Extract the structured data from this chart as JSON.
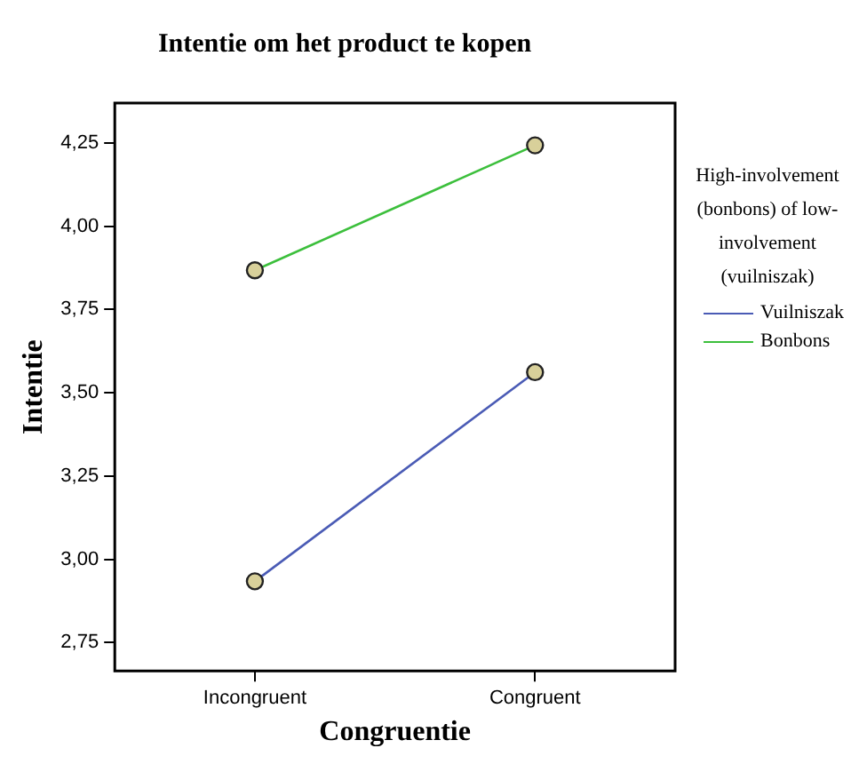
{
  "chart_data": {
    "type": "line",
    "title": "Intentie om het product te kopen",
    "xlabel": "Congruentie",
    "ylabel": "Intentie",
    "legend_title": "High-involvement (bonbons) of low-involvement (vuilniszak)",
    "categories": [
      "Incongruent",
      "Congruent"
    ],
    "series": [
      {
        "name": "Vuilniszak",
        "color": "#4a5bb5",
        "values": [
          2.934,
          3.562
        ]
      },
      {
        "name": "Bonbons",
        "color": "#3cbf3c",
        "values": [
          3.868,
          4.243
        ]
      }
    ],
    "ylim": [
      2.665,
      4.37
    ],
    "yticks": [
      {
        "value": 2.75,
        "label": "2,75"
      },
      {
        "value": 3,
        "label": "3,00"
      },
      {
        "value": 3.25,
        "label": "3,25"
      },
      {
        "value": 3.5,
        "label": "3,50"
      },
      {
        "value": 3.75,
        "label": "3,75"
      },
      {
        "value": 4,
        "label": "4,00"
      },
      {
        "value": 4.25,
        "label": "4,25"
      }
    ],
    "grid": false,
    "legend": "right",
    "marker": "circle",
    "line_style": "solid"
  }
}
